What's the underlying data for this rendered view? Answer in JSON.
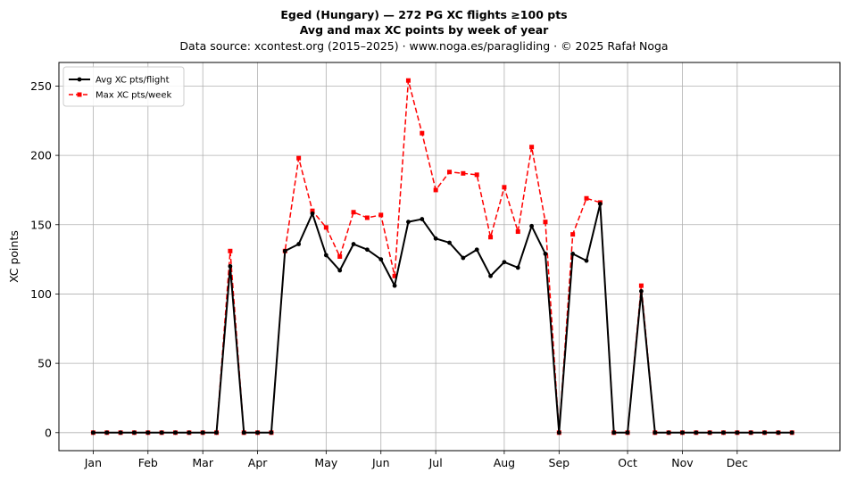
{
  "title": "Eged (Hungary)  —  272 PG XC flights ≥100 pts",
  "subtitle": "Avg and max XC points by week of year",
  "source_line": "Data source: xcontest.org (2015–2025)  ·  www.noga.es/paragliding  ·  © 2025 Rafał Noga",
  "chart_data": {
    "type": "line",
    "title": "Eged (Hungary)  —  272 PG XC flights ≥100 pts",
    "subtitle": "Avg and max XC points by week of year",
    "xlabel": "",
    "ylabel": "XC points",
    "xlim": [
      -2.5,
      54.5
    ],
    "ylim": [
      -13,
      267
    ],
    "x_ticks": [
      {
        "label": "Jan",
        "x": 0
      },
      {
        "label": "Feb",
        "x": 4
      },
      {
        "label": "Mar",
        "x": 8
      },
      {
        "label": "Apr",
        "x": 12
      },
      {
        "label": "May",
        "x": 17
      },
      {
        "label": "Jun",
        "x": 21
      },
      {
        "label": "Jul",
        "x": 25
      },
      {
        "label": "Aug",
        "x": 30
      },
      {
        "label": "Sep",
        "x": 34
      },
      {
        "label": "Oct",
        "x": 39
      },
      {
        "label": "Nov",
        "x": 43
      },
      {
        "label": "Dec",
        "x": 47
      }
    ],
    "y_ticks": [
      0,
      50,
      100,
      150,
      200,
      250
    ],
    "grid": true,
    "legend_position": "top-left",
    "x": [
      0,
      1,
      2,
      3,
      4,
      5,
      6,
      7,
      8,
      9,
      10,
      11,
      12,
      13,
      14,
      15,
      16,
      17,
      18,
      19,
      20,
      21,
      22,
      23,
      24,
      25,
      26,
      27,
      28,
      29,
      30,
      31,
      32,
      33,
      34,
      35,
      36,
      37,
      38,
      39,
      40,
      41,
      42,
      43,
      44,
      45,
      46,
      47,
      48,
      49,
      50,
      51
    ],
    "series": [
      {
        "name": "Avg XC pts/flight",
        "color": "#000000",
        "style": "solid",
        "marker": "circle",
        "values": [
          0,
          0,
          0,
          0,
          0,
          0,
          0,
          0,
          0,
          0,
          120,
          0,
          0,
          0,
          131,
          136,
          158,
          128,
          117,
          136,
          132,
          125,
          106,
          152,
          154,
          140,
          137,
          126,
          132,
          113,
          123,
          119,
          149,
          129,
          0,
          129,
          124,
          165,
          0,
          0,
          102,
          0,
          0,
          0,
          0,
          0,
          0,
          0,
          0,
          0,
          0,
          0
        ]
      },
      {
        "name": "Max XC pts/week",
        "color": "#ff0000",
        "style": "dashed",
        "marker": "square",
        "values": [
          0,
          0,
          0,
          0,
          0,
          0,
          0,
          0,
          0,
          0,
          131,
          0,
          0,
          0,
          131,
          198,
          160,
          148,
          127,
          159,
          155,
          157,
          113,
          254,
          216,
          175,
          188,
          187,
          186,
          141,
          177,
          145,
          206,
          152,
          0,
          143,
          169,
          166,
          0,
          0,
          106,
          0,
          0,
          0,
          0,
          0,
          0,
          0,
          0,
          0,
          0,
          0
        ]
      }
    ]
  }
}
